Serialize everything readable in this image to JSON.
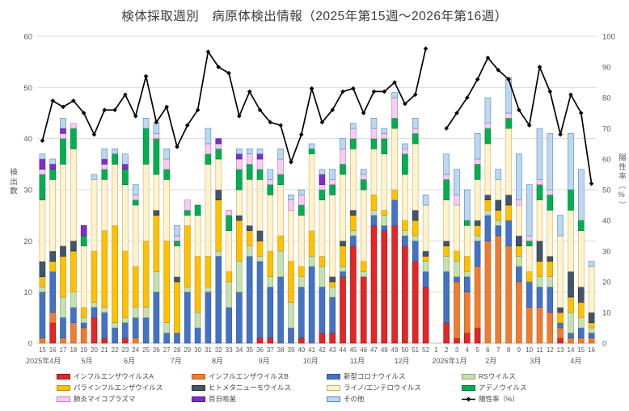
{
  "title": "検体採取週別　病原体検出情報（2025年第15週～2026年第16週）",
  "left_axis": {
    "title": "検出数",
    "ticks": [
      0,
      10,
      20,
      30,
      40,
      50,
      60
    ],
    "max": 60
  },
  "right_axis": {
    "title": "陽性率（%）",
    "ticks": [
      0,
      10,
      20,
      30,
      40,
      50,
      60,
      70,
      80,
      90,
      100
    ],
    "max": 100
  },
  "chart_data": {
    "type": "bar",
    "subtype": "stacked-bars-with-line-overlay",
    "grid": true,
    "legend_position": "bottom",
    "ylim_left": [
      0,
      60
    ],
    "ylim_right": [
      0,
      100
    ],
    "categories": [
      "15",
      "16",
      "17",
      "18",
      "19",
      "20",
      "21",
      "22",
      "23",
      "24",
      "25",
      "26",
      "27",
      "28",
      "29",
      "30",
      "31",
      "32",
      "33",
      "34",
      "35",
      "36",
      "37",
      "38",
      "39",
      "40",
      "41",
      "42",
      "43",
      "44",
      "45",
      "46",
      "47",
      "48",
      "49",
      "50",
      "51",
      "52",
      "1",
      "2",
      "3",
      "4",
      "5",
      "6",
      "7",
      "8",
      "9",
      "10",
      "11",
      "12",
      "13",
      "14",
      "15",
      "16"
    ],
    "months": [
      {
        "label": "2025年4月",
        "center_index": 0.1
      },
      {
        "label": "5月",
        "center_index": 4.3
      },
      {
        "label": "6月",
        "center_index": 8.4
      },
      {
        "label": "7月",
        "center_index": 12.9
      },
      {
        "label": "8月",
        "center_index": 16.9
      },
      {
        "label": "9月",
        "center_index": 21.4
      },
      {
        "label": "10月",
        "center_index": 25.9
      },
      {
        "label": "11月",
        "center_index": 30.4
      },
      {
        "label": "12月",
        "center_index": 34.7
      },
      {
        "label": "2026年1月",
        "center_index": 39.3
      },
      {
        "label": "2月",
        "center_index": 43.3
      },
      {
        "label": "3月",
        "center_index": 47.6
      },
      {
        "label": "4月",
        "center_index": 51.5
      }
    ],
    "series": [
      {
        "name": "インフルエンザウイルスA",
        "color": "#e32726",
        "border": "#9c1313",
        "values": [
          0,
          4,
          0,
          0,
          0,
          5,
          1,
          0,
          1,
          0,
          0,
          0,
          0,
          0,
          0,
          0,
          0,
          0,
          0,
          0,
          0,
          1,
          1,
          0,
          0,
          1,
          0,
          2,
          2,
          13,
          19,
          13,
          23,
          22,
          23,
          19,
          16,
          11,
          0,
          4,
          1,
          2,
          3,
          0,
          0,
          0,
          0,
          0,
          0,
          0,
          1,
          0,
          0,
          0
        ]
      },
      {
        "name": "インフルエンザウイルスB",
        "color": "#ed7d31",
        "border": "#c55a11",
        "values": [
          1,
          2,
          1,
          4,
          3,
          0,
          0,
          0,
          0,
          1,
          0,
          0,
          0,
          0,
          0,
          0,
          0,
          0,
          0,
          0,
          0,
          0,
          0,
          0,
          0,
          0,
          0,
          0,
          0,
          0,
          0,
          0,
          0,
          0,
          0,
          0,
          0,
          0,
          0,
          0,
          11,
          8,
          12,
          20,
          21,
          19,
          12,
          7,
          7,
          6,
          2,
          1,
          1,
          1
        ]
      },
      {
        "name": "新型コロナウイルス",
        "color": "#4472c4",
        "border": "#2f5597",
        "values": [
          9,
          8,
          4,
          3,
          1,
          2,
          5,
          3,
          3,
          4,
          5,
          10,
          2,
          2,
          10,
          3,
          10,
          17,
          7,
          10,
          17,
          15,
          10,
          13,
          3,
          10,
          15,
          9,
          7,
          1,
          2,
          0,
          2,
          1,
          5,
          2,
          4,
          3,
          0,
          10,
          1,
          3,
          5,
          5,
          2,
          5,
          3,
          5,
          4,
          5,
          1,
          1,
          2,
          1
        ]
      },
      {
        "name": "RSウイルス",
        "color": "#c6e0b4",
        "border": "#86aa64",
        "values": [
          1,
          0,
          4,
          3,
          1,
          1,
          1,
          1,
          1,
          2,
          2,
          4,
          2,
          0,
          1,
          3,
          1,
          1,
          5,
          6,
          2,
          1,
          2,
          5,
          5,
          2,
          2,
          4,
          2,
          1,
          1,
          1,
          1,
          2,
          0,
          1,
          1,
          2,
          0,
          3,
          3,
          1,
          1,
          1,
          1,
          0,
          2,
          0,
          2,
          2,
          0,
          4,
          2,
          1
        ]
      },
      {
        "name": "パラインフルエンザウイルス",
        "color": "#ffc000",
        "border": "#bf9000",
        "values": [
          2,
          2,
          8,
          8,
          2,
          10,
          15,
          19,
          13,
          8,
          13,
          11,
          16,
          10,
          12,
          11,
          6,
          10,
          2,
          8,
          3,
          3,
          5,
          3,
          8,
          2,
          5,
          2,
          1,
          4,
          3,
          2,
          3,
          1,
          2,
          2,
          3,
          1,
          0,
          2,
          2,
          3,
          2,
          2,
          2,
          3,
          2,
          2,
          3,
          3,
          2,
          3,
          3,
          1
        ]
      },
      {
        "name": "ヒトメタニューモウイルス",
        "color": "#44546a",
        "border": "#222a35",
        "values": [
          3,
          2,
          2,
          2,
          0,
          0,
          0,
          0,
          0,
          0,
          0,
          1,
          0,
          1,
          0,
          0,
          0,
          2,
          0,
          1,
          1,
          2,
          0,
          0,
          0,
          0,
          0,
          0,
          1,
          1,
          1,
          0,
          0,
          0,
          0,
          0,
          2,
          1,
          0,
          1,
          0,
          0,
          1,
          1,
          2,
          2,
          2,
          0,
          4,
          1,
          1,
          5,
          3,
          2
        ]
      },
      {
        "name": "ライノ/エンテロウイルス",
        "color": "#fff2cc",
        "border": "#c9b26b",
        "values": [
          12,
          14,
          16,
          18,
          12,
          14,
          10,
          12,
          13,
          12,
          15,
          7,
          12,
          6,
          2,
          8,
          18,
          6,
          8,
          5,
          9,
          10,
          11,
          10,
          10,
          10,
          15,
          11,
          16,
          13,
          12,
          14,
          9,
          11,
          12,
          9,
          13,
          9,
          0,
          8,
          9,
          6,
          8,
          10,
          4,
          13,
          6,
          5,
          8,
          9,
          14,
          12,
          11,
          9
        ]
      },
      {
        "name": "アデノウイルス",
        "color": "#00b050",
        "border": "#00752f",
        "values": [
          5,
          2,
          5,
          4,
          2,
          0,
          2,
          2,
          3,
          1,
          7,
          7,
          2,
          1,
          1,
          2,
          2,
          2,
          3,
          4,
          3,
          2,
          2,
          2,
          0,
          2,
          1,
          2,
          2,
          2,
          2,
          2,
          2,
          3,
          2,
          4,
          2,
          0,
          0,
          4,
          0,
          1,
          3,
          3,
          0,
          2,
          0,
          1,
          3,
          3,
          0,
          4,
          2,
          0
        ]
      },
      {
        "name": "肺炎マイコプラズマ",
        "color": "#f2ceef",
        "border": "#c478be",
        "values": [
          1,
          0,
          1,
          1,
          0,
          0,
          1,
          0,
          0,
          1,
          0,
          1,
          2,
          1,
          2,
          0,
          2,
          1,
          1,
          2,
          2,
          2,
          1,
          3,
          2,
          2,
          0,
          1,
          1,
          3,
          2,
          1,
          2,
          1,
          4,
          1,
          1,
          0,
          0,
          1,
          2,
          0,
          1,
          1,
          0,
          1,
          1,
          1,
          1,
          1,
          0,
          0,
          0,
          0
        ]
      },
      {
        "name": "百日咳菌",
        "color": "#7f2dcb",
        "border": "#531a89",
        "values": [
          2,
          1,
          1,
          0,
          2,
          0,
          1,
          0,
          1,
          0,
          0,
          0,
          0,
          0,
          0,
          0,
          0,
          1,
          0,
          1,
          0,
          1,
          0,
          0,
          0,
          0,
          0,
          2,
          0,
          0,
          0,
          0,
          0,
          0,
          0,
          0,
          0,
          0,
          0,
          0,
          0,
          0,
          0,
          0,
          0,
          0,
          0,
          0,
          0,
          0,
          0,
          0,
          0,
          0
        ]
      },
      {
        "name": "その他",
        "color": "#bdd7ee",
        "border": "#4e87c0",
        "values": [
          1,
          1,
          2,
          0,
          0,
          1,
          2,
          1,
          2,
          2,
          2,
          2,
          2,
          2,
          0,
          0,
          3,
          0,
          0,
          1,
          1,
          1,
          2,
          2,
          1,
          1,
          1,
          1,
          2,
          2,
          1,
          1,
          2,
          1,
          1,
          1,
          2,
          2,
          0,
          4,
          5,
          6,
          5,
          5,
          2,
          7,
          9,
          10,
          10,
          11,
          4,
          11,
          10,
          1
        ]
      }
    ],
    "line": {
      "name": "陽性率（%）",
      "color": "#000000",
      "values": [
        66,
        79,
        77,
        79,
        75,
        68,
        76,
        76,
        81,
        74,
        87,
        72,
        77,
        64,
        71,
        76,
        95,
        90,
        88,
        74,
        82,
        76,
        72,
        71,
        59,
        68,
        83,
        72,
        76,
        82,
        83,
        75,
        82,
        82,
        85,
        78,
        81,
        96,
        null,
        70,
        75,
        80,
        86,
        93,
        89,
        86,
        76,
        71,
        90,
        82,
        68,
        81,
        75,
        52
      ]
    }
  }
}
